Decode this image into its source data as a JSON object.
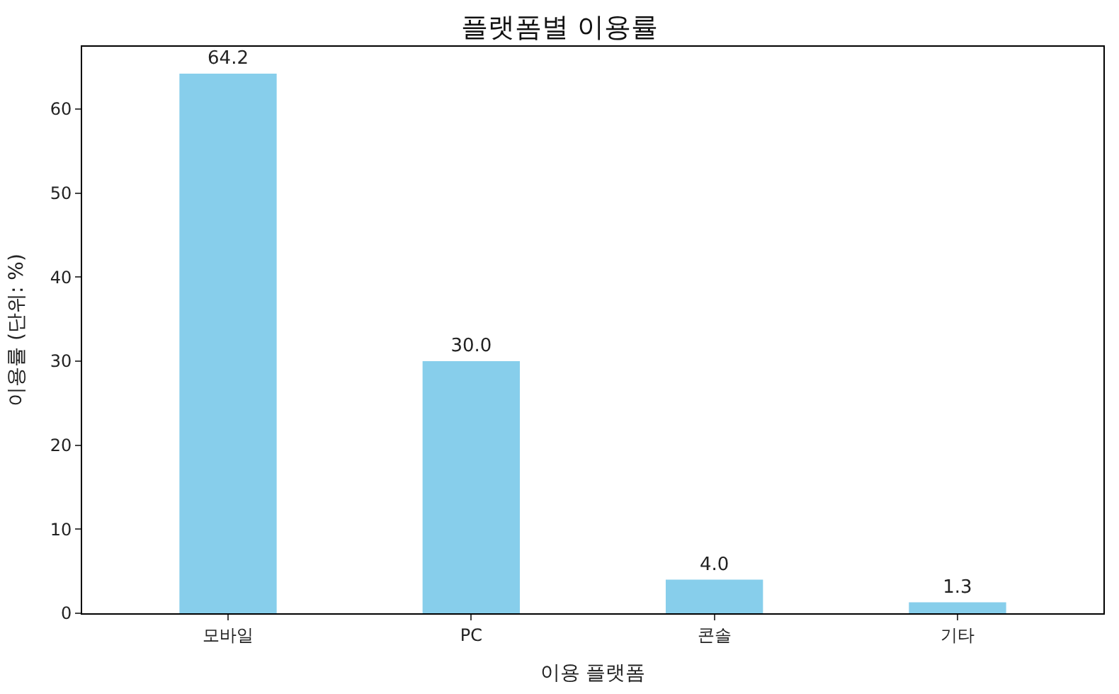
{
  "chart_data": {
    "type": "bar",
    "title": "플랫폼별 이용률",
    "xlabel": "이용 플랫폼",
    "ylabel": "이용률 (단위: %)",
    "categories": [
      "모바일",
      "PC",
      "콘솔",
      "기타"
    ],
    "values": [
      64.2,
      30.0,
      4.0,
      1.3
    ],
    "value_labels": [
      "64.2",
      "30.0",
      "4.0",
      "1.3"
    ],
    "color": "#87ceeb",
    "ylim": [
      0,
      67.4
    ],
    "yticks": [
      0,
      10,
      20,
      30,
      40,
      50,
      60
    ]
  }
}
